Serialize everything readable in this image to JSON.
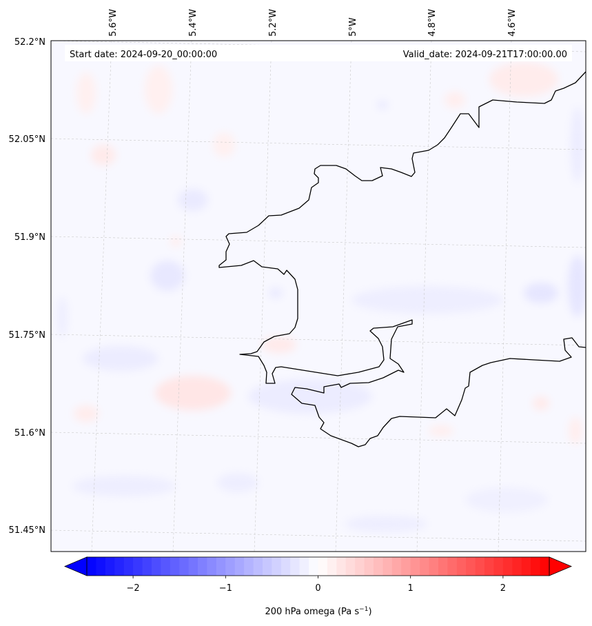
{
  "header": {
    "start_date": "Start date: 2024-09-20_00:00:00",
    "valid_date": "Valid_date: 2024-09-21T17:00:00.00"
  },
  "longitude_labels": [
    "5.6°W",
    "5.4°W",
    "5.2°W",
    "5°W",
    "4.8°W",
    "4.6°W"
  ],
  "latitude_labels": [
    "52.2°N",
    "52.05°N",
    "51.9°N",
    "51.75°N",
    "51.6°N",
    "51.45°N"
  ],
  "colorbar": {
    "label_main": "200 hPa omega (Pa s",
    "label_exp": "−1",
    "label_end": ")",
    "ticks": [
      "−2",
      "−1",
      "0",
      "1",
      "2"
    ],
    "range": [
      -2.5,
      2.5
    ],
    "negative_color": "#0000ff",
    "neutral_color": "#ffffff",
    "positive_color": "#ff0000"
  },
  "map": {
    "background_color": "#f8f8ff",
    "coastline_color": "#000000",
    "gridline_color": "#c8c8c8"
  }
}
